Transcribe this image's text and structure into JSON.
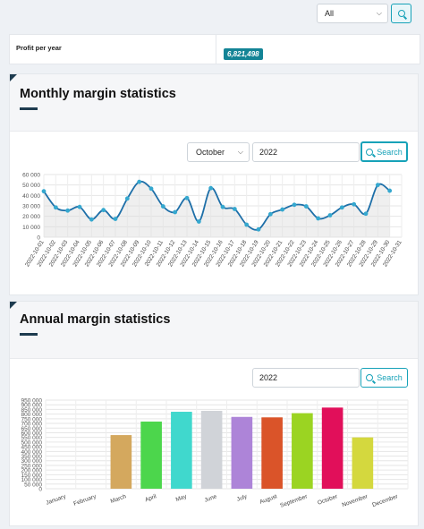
{
  "filter": {
    "selected": "All",
    "search_icon": "search-icon"
  },
  "profit": {
    "label": "Profit per year",
    "value": "6,821,498"
  },
  "monthly": {
    "title": "Monthly margin statistics",
    "month_selected": "October",
    "year": "2022",
    "search_label": "Search"
  },
  "annual": {
    "title": "Annual margin statistics",
    "year": "2022",
    "search_label": "Search"
  },
  "chart_data": [
    {
      "type": "line",
      "title": "",
      "xlabel": "",
      "ylabel": "",
      "ylim": [
        0,
        60000
      ],
      "yticks": [
        0,
        10000,
        20000,
        30000,
        40000,
        50000,
        60000
      ],
      "ytick_labels": [
        "0",
        "10 000",
        "20 000",
        "30 000",
        "40 000",
        "50 000",
        "60 000"
      ],
      "grid": true,
      "line_color": "#1e6fa8",
      "point_color": "#35a8cf",
      "x": [
        "2022-10-01",
        "2022-10-02",
        "2022-10-03",
        "2022-10-04",
        "2022-10-05",
        "2022-10-06",
        "2022-10-07",
        "2022-10-08",
        "2022-10-09",
        "2022-10-10",
        "2022-10-11",
        "2022-10-12",
        "2022-10-13",
        "2022-10-14",
        "2022-10-15",
        "2022-10-16",
        "2022-10-17",
        "2022-10-18",
        "2022-10-19",
        "2022-10-20",
        "2022-10-21",
        "2022-10-22",
        "2022-10-23",
        "2022-10-24",
        "2022-10-25",
        "2022-10-26",
        "2022-10-27",
        "2022-10-28",
        "2022-10-29",
        "2022-10-30",
        "2022-10-31"
      ],
      "values": [
        44000,
        28500,
        25500,
        29000,
        17000,
        26000,
        17500,
        37000,
        53000,
        46500,
        29500,
        24000,
        37500,
        15000,
        47000,
        29000,
        27000,
        12000,
        7500,
        22000,
        26500,
        31000,
        29500,
        18000,
        21000,
        28500,
        31500,
        22500,
        50000,
        44500,
        null
      ]
    },
    {
      "type": "bar",
      "title": "",
      "xlabel": "",
      "ylabel": "",
      "ylim": [
        0,
        950000
      ],
      "yticks": [
        0,
        50000,
        100000,
        150000,
        200000,
        250000,
        300000,
        350000,
        400000,
        450000,
        500000,
        550000,
        600000,
        650000,
        700000,
        750000,
        800000,
        850000,
        900000,
        950000
      ],
      "ytick_labels": [
        "0",
        "50 000",
        "100 000",
        "150 000",
        "200 000",
        "250 000",
        "300 000",
        "350 000",
        "400 000",
        "450 000",
        "500 000",
        "550 000",
        "600 000",
        "650 000",
        "700 000",
        "750 000",
        "800 000",
        "850 000",
        "900 000",
        "950 000"
      ],
      "grid": true,
      "categories": [
        "January",
        "February",
        "March",
        "April",
        "May",
        "June",
        "July",
        "August",
        "September",
        "October",
        "November",
        "December"
      ],
      "values": [
        0,
        0,
        575000,
        720000,
        825000,
        835000,
        770000,
        765000,
        810000,
        870000,
        550000,
        0
      ],
      "colors": [
        "#cccccc",
        "#cccccc",
        "#d4a85e",
        "#4cd64c",
        "#40d8cd",
        "#d0d3d8",
        "#ad84d8",
        "#da5429",
        "#9bd422",
        "#e10f5a",
        "#d4d83e",
        "#cccccc"
      ]
    }
  ]
}
